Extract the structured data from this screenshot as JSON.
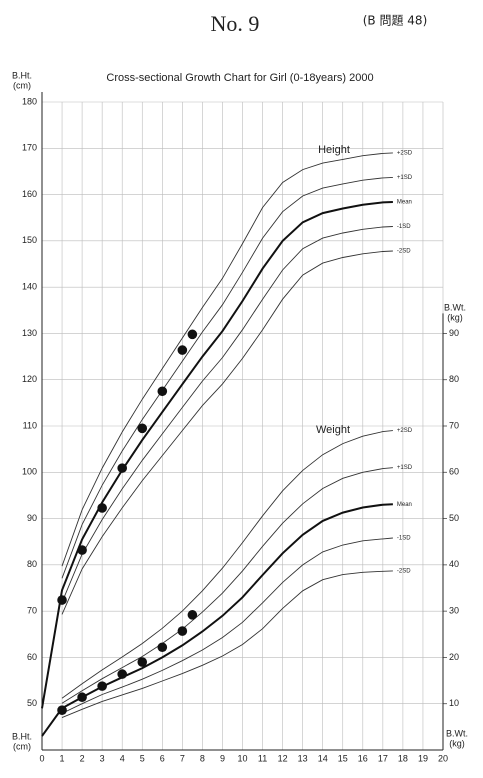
{
  "header": "No.  9",
  "problem": "(B 問題 48)",
  "chart_data": {
    "type": "line",
    "title": "Cross-sectional Growth Chart for Girl (0-18years) 2000",
    "ylabel": "B.Ht.",
    "yunit": "(cm)",
    "y2label": "B.Wt.",
    "y2unit": "(kg)",
    "xlim": [
      0,
      20
    ],
    "xticks": [
      0,
      1,
      2,
      3,
      4,
      5,
      6,
      7,
      8,
      9,
      10,
      11,
      12,
      13,
      14,
      15,
      16,
      17,
      18,
      19,
      20
    ],
    "ylim": [
      40,
      180
    ],
    "yticks": [
      50,
      60,
      70,
      80,
      90,
      100,
      110,
      120,
      130,
      140,
      150,
      160,
      170,
      180
    ],
    "y2lim": [
      0,
      140
    ],
    "y2ticks": [
      10,
      20,
      30,
      40,
      50,
      60,
      70,
      80,
      90
    ],
    "grid": true,
    "x": [
      0,
      1,
      2,
      3,
      4,
      5,
      6,
      7,
      8,
      9,
      10,
      11,
      12,
      13,
      14,
      15,
      16,
      17,
      17.5
    ],
    "annotations": [
      "Height",
      "Weight"
    ],
    "series": [
      {
        "name": "+2SD",
        "color": "#333",
        "width": 0.9,
        "axis": "y",
        "values": [
          null,
          79.7,
          91.9,
          100.9,
          108.7,
          115.8,
          122.4,
          129,
          135.6,
          141.9,
          149.4,
          157.2,
          162.6,
          165.4,
          166.8,
          167.6,
          168.4,
          168.9,
          169
        ]
      },
      {
        "name": "+1SD",
        "color": "#333",
        "width": 0.9,
        "axis": "y",
        "values": [
          null,
          77.1,
          88.7,
          97.2,
          104.6,
          111.4,
          117.7,
          124,
          130.3,
          136.2,
          143.2,
          150.6,
          156.3,
          159.7,
          161.4,
          162.3,
          163.1,
          163.6,
          163.7
        ]
      },
      {
        "name": "Mean",
        "color": "#111",
        "width": 2,
        "axis": "y",
        "values": [
          49,
          74.5,
          85.5,
          93.5,
          100.5,
          107,
          113,
          119,
          125,
          130.5,
          137,
          144,
          150,
          154,
          156,
          157,
          157.8,
          158.3,
          158.4
        ]
      },
      {
        "name": "-1SD",
        "color": "#333",
        "width": 0.9,
        "axis": "y",
        "values": [
          null,
          71.9,
          82.3,
          89.8,
          96.4,
          102.6,
          108.3,
          114,
          119.7,
          124.8,
          130.8,
          137.4,
          143.7,
          148.3,
          150.6,
          151.7,
          152.5,
          153,
          153.1
        ]
      },
      {
        "name": "-2SD",
        "color": "#333",
        "width": 0.9,
        "axis": "y",
        "values": [
          null,
          69.3,
          79.1,
          86.1,
          92.3,
          98.2,
          103.6,
          109,
          114.4,
          119.1,
          124.6,
          130.8,
          137.4,
          142.6,
          145.2,
          146.4,
          147.2,
          147.7,
          147.8
        ]
      },
      {
        "name": "+2SD",
        "color": "#333",
        "width": 0.9,
        "axis": "y2",
        "values": [
          null,
          11.2,
          14.3,
          17.3,
          20.1,
          23,
          26.3,
          30,
          34.4,
          39.3,
          44.8,
          50.6,
          56,
          60.4,
          63.8,
          66.2,
          67.8,
          68.8,
          69
        ]
      },
      {
        "name": "+1SD",
        "color": "#333",
        "width": 0.9,
        "axis": "y2",
        "values": [
          null,
          10.1,
          12.8,
          15.4,
          17.8,
          20.2,
          23,
          26.1,
          29.8,
          33.9,
          38.7,
          44,
          49,
          53.2,
          56.5,
          58.7,
          60,
          60.8,
          61
        ]
      },
      {
        "name": "Mean",
        "color": "#111",
        "width": 2,
        "axis": "y2",
        "values": [
          3,
          9,
          11.4,
          13.7,
          15.7,
          17.7,
          20,
          22.6,
          25.6,
          29,
          33,
          37.8,
          42.5,
          46.5,
          49.5,
          51.3,
          52.4,
          53,
          53.1
        ]
      },
      {
        "name": "-1SD",
        "color": "#333",
        "width": 0.9,
        "axis": "y2",
        "values": [
          null,
          7.9,
          10,
          12,
          13.6,
          15.3,
          17.2,
          19.3,
          21.6,
          24.3,
          27.6,
          31.8,
          36.2,
          40,
          42.8,
          44.3,
          45.2,
          45.6,
          45.8
        ]
      },
      {
        "name": "-2SD",
        "color": "#333",
        "width": 0.9,
        "axis": "y2",
        "values": [
          null,
          7,
          8.8,
          10.5,
          11.9,
          13.3,
          14.9,
          16.5,
          18.3,
          20.3,
          22.8,
          26.2,
          30.6,
          34.4,
          36.8,
          37.9,
          38.4,
          38.6,
          38.7
        ]
      }
    ],
    "measurements": [
      {
        "axis": "y",
        "color": "#111",
        "x": [
          1,
          2,
          3,
          4,
          5,
          6,
          7,
          7.5
        ],
        "values": [
          72.4,
          83.2,
          92.3,
          100.9,
          109.5,
          117.5,
          126.4,
          129.8
        ]
      },
      {
        "axis": "y2",
        "color": "#111",
        "x": [
          1,
          2,
          3,
          4,
          5,
          6,
          7,
          7.5
        ],
        "values": [
          8.6,
          11.4,
          13.8,
          16.4,
          19,
          22.2,
          25.7,
          29.2
        ]
      }
    ]
  }
}
